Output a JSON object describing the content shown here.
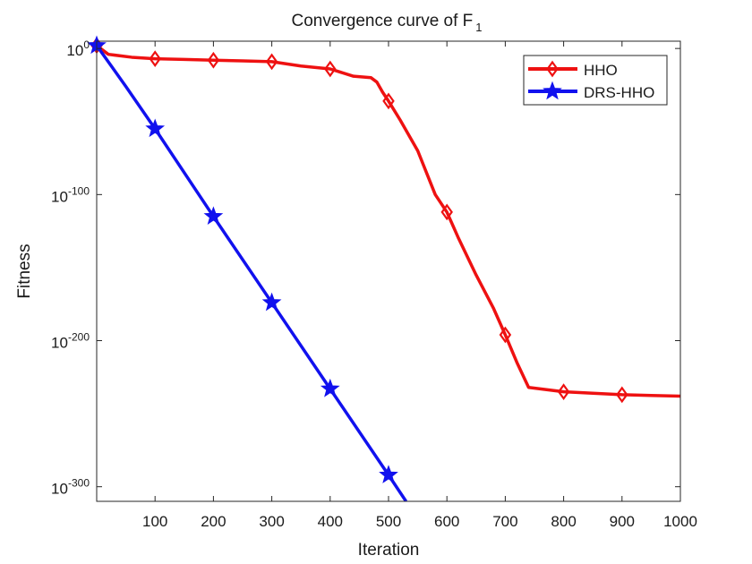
{
  "chart_data": {
    "type": "line",
    "title": "Convergence curve of F",
    "title_subscript": "1",
    "xlabel": "Iteration",
    "ylabel": "Fitness",
    "x_scale": "linear",
    "y_scale": "log",
    "xlim": [
      0,
      1000
    ],
    "ylim_log10": [
      -310,
      5
    ],
    "x_ticks": [
      100,
      200,
      300,
      400,
      500,
      600,
      700,
      800,
      900,
      1000
    ],
    "x_tick_labels": [
      "100",
      "200",
      "300",
      "400",
      "500",
      "600",
      "700",
      "800",
      "900",
      "1000"
    ],
    "y_ticks_log10": [
      0,
      -100,
      -200,
      -300
    ],
    "y_tick_labels": [
      {
        "base": "10",
        "exp": "0"
      },
      {
        "base": "10",
        "exp": "-100"
      },
      {
        "base": "10",
        "exp": "-200"
      },
      {
        "base": "10",
        "exp": "-300"
      }
    ],
    "legend_position": "top-right",
    "grid": false,
    "series": [
      {
        "name": "HHO",
        "color": "#ee1111",
        "marker": "diamond",
        "marker_x": [
          0,
          100,
          200,
          300,
          400,
          500,
          600,
          700,
          800,
          900
        ],
        "x": [
          0,
          20,
          60,
          100,
          150,
          200,
          250,
          300,
          350,
          400,
          440,
          470,
          480,
          490,
          500,
          520,
          550,
          580,
          600,
          620,
          650,
          680,
          700,
          720,
          740,
          760,
          800,
          850,
          900,
          950,
          1000
        ],
        "log10_y": [
          2,
          -4,
          -6,
          -7,
          -7.5,
          -8,
          -8.5,
          -9,
          -12,
          -14,
          -19,
          -20,
          -23,
          -30,
          -36,
          -49,
          -70,
          -100,
          -112,
          -130,
          -155,
          -178,
          -196,
          -215,
          -232,
          -233,
          -235,
          -236,
          -237,
          -237.5,
          -238
        ]
      },
      {
        "name": "DRS-HHO",
        "color": "#1111ee",
        "marker": "star",
        "marker_x": [
          0,
          100,
          200,
          300,
          400,
          500
        ],
        "x": [
          0,
          50,
          100,
          200,
          300,
          400,
          500,
          530
        ],
        "log10_y": [
          2,
          -26,
          -55,
          -115,
          -174,
          -233,
          -292,
          -310
        ]
      }
    ]
  }
}
